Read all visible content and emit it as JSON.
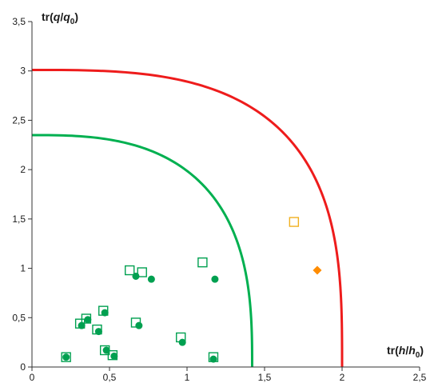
{
  "chart_data": {
    "type": "scatter",
    "title": "",
    "xlabel": {
      "prefix": "tr(",
      "num": "h",
      "den": "h",
      "den_sub": "0",
      "suffix": ")"
    },
    "ylabel": {
      "prefix": "tr(",
      "num": "q",
      "den": "q",
      "den_sub": "0",
      "suffix": ")"
    },
    "xlim": [
      0,
      2.5
    ],
    "ylim": [
      0,
      3.5
    ],
    "xticks": [
      0,
      0.5,
      1,
      1.5,
      2,
      2.5
    ],
    "yticks": [
      0,
      0.5,
      1,
      1.5,
      2,
      2.5,
      3,
      3.5
    ],
    "xtick_labels": [
      "0",
      "0,5",
      "1",
      "1,5",
      "2",
      "2,5"
    ],
    "ytick_labels": [
      "0",
      "0,5",
      "1",
      "1,5",
      "2",
      "2,5",
      "3",
      "3,5"
    ],
    "grid": false,
    "curves": [
      {
        "color": "#00b050",
        "x_intercept": 1.42,
        "y_intercept": 2.35,
        "exponent": 2.8
      },
      {
        "color": "#ee1c1c",
        "x_intercept": 2.0,
        "y_intercept": 3.01,
        "exponent": 3.1
      }
    ],
    "series": [
      {
        "marker": "square-open",
        "color": "#00a050",
        "points": [
          [
            0.22,
            0.1
          ],
          [
            0.31,
            0.44
          ],
          [
            0.35,
            0.49
          ],
          [
            0.42,
            0.38
          ],
          [
            0.46,
            0.57
          ],
          [
            0.47,
            0.17
          ],
          [
            0.52,
            0.12
          ],
          [
            0.63,
            0.98
          ],
          [
            0.67,
            0.45
          ],
          [
            0.71,
            0.96
          ],
          [
            0.96,
            0.3
          ],
          [
            1.1,
            1.06
          ],
          [
            1.17,
            0.1
          ]
        ]
      },
      {
        "marker": "circle",
        "color": "#00a050",
        "points": [
          [
            0.22,
            0.1
          ],
          [
            0.32,
            0.42
          ],
          [
            0.36,
            0.48
          ],
          [
            0.43,
            0.36
          ],
          [
            0.47,
            0.55
          ],
          [
            0.48,
            0.17
          ],
          [
            0.53,
            0.11
          ],
          [
            0.67,
            0.92
          ],
          [
            0.69,
            0.42
          ],
          [
            0.77,
            0.89
          ],
          [
            0.97,
            0.25
          ],
          [
            1.18,
            0.89
          ],
          [
            1.17,
            0.08
          ]
        ]
      },
      {
        "marker": "square-open",
        "color": "#f0b020",
        "points": [
          [
            1.69,
            1.47
          ]
        ]
      },
      {
        "marker": "diamond",
        "color": "#ff8c00",
        "points": [
          [
            1.84,
            0.98
          ]
        ]
      }
    ]
  }
}
